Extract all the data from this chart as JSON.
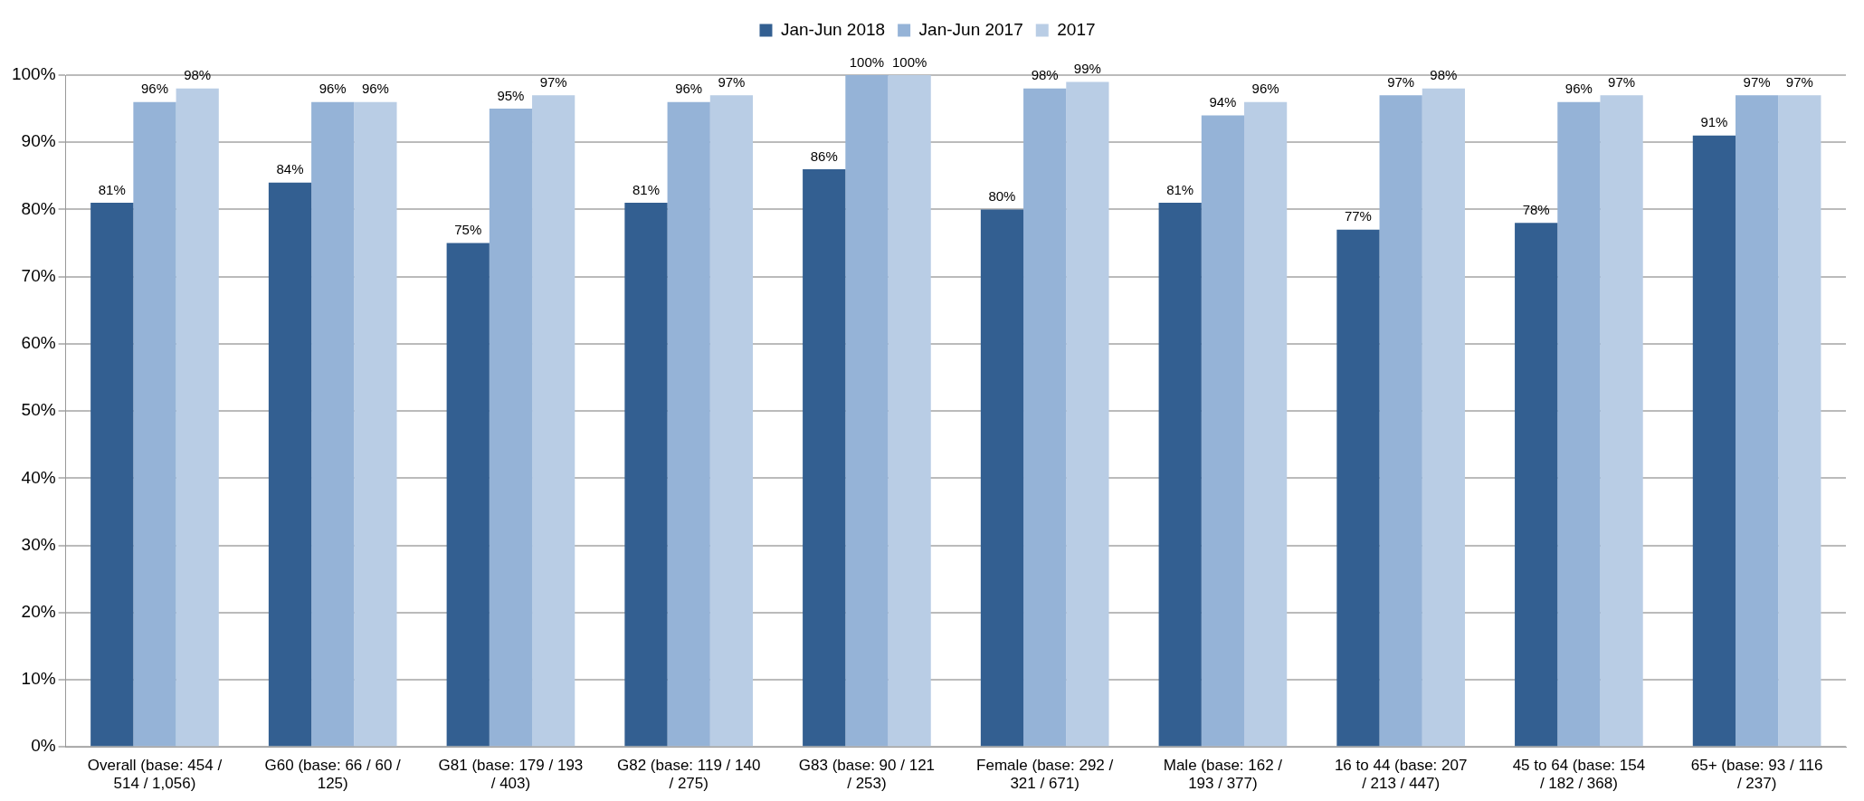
{
  "chart_data": {
    "type": "bar",
    "categories": [
      "Overall (base: 454 / 514 / 1,056)",
      "G60 (base: 66 / 60 / 125)",
      "G81 (base: 179 / 193 / 403)",
      "G82 (base: 119 / 140 / 275)",
      "G83 (base: 90 / 121 / 253)",
      "Female (base: 292 / 321 / 671)",
      "Male (base: 162 / 193 / 377)",
      "16 to 44 (base: 207 / 213 / 447)",
      "45 to 64 (base: 154 / 182 / 368)",
      "65+ (base: 93 / 116 / 237)"
    ],
    "series": [
      {
        "name": "Jan-Jun 2018",
        "color": "#335f91",
        "values": [
          81,
          84,
          75,
          81,
          86,
          80,
          81,
          77,
          78,
          91
        ],
        "value_labels": [
          "81%",
          "84%",
          "75%",
          "81%",
          "86%",
          "80%",
          "81%",
          "77%",
          "78%",
          "91%"
        ]
      },
      {
        "name": "Jan-Jun 2017",
        "color": "#95b3d7",
        "values": [
          96,
          96,
          95,
          96,
          100,
          98,
          94,
          97,
          96,
          97
        ],
        "value_labels": [
          "96%",
          "96%",
          "95%",
          "96%",
          "100%",
          "98%",
          "94%",
          "97%",
          "96%",
          "97%"
        ]
      },
      {
        "name": "2017",
        "color": "#b9cde5",
        "values": [
          98,
          96,
          97,
          97,
          100,
          99,
          96,
          98,
          97,
          97
        ],
        "value_labels": [
          "98%",
          "96%",
          "97%",
          "97%",
          "100%",
          "99%",
          "96%",
          "98%",
          "97%",
          "97%"
        ]
      }
    ],
    "ylim": [
      0,
      100
    ],
    "yticks": [
      {
        "value": 0,
        "label": "0%"
      },
      {
        "value": 10,
        "label": "10%"
      },
      {
        "value": 20,
        "label": "20%"
      },
      {
        "value": 30,
        "label": "30%"
      },
      {
        "value": 40,
        "label": "40%"
      },
      {
        "value": 50,
        "label": "50%"
      },
      {
        "value": 60,
        "label": "60%"
      },
      {
        "value": 70,
        "label": "70%"
      },
      {
        "value": 80,
        "label": "80%"
      },
      {
        "value": 90,
        "label": "90%"
      },
      {
        "value": 100,
        "label": "100%"
      }
    ],
    "grid": "y",
    "legend": "top"
  }
}
